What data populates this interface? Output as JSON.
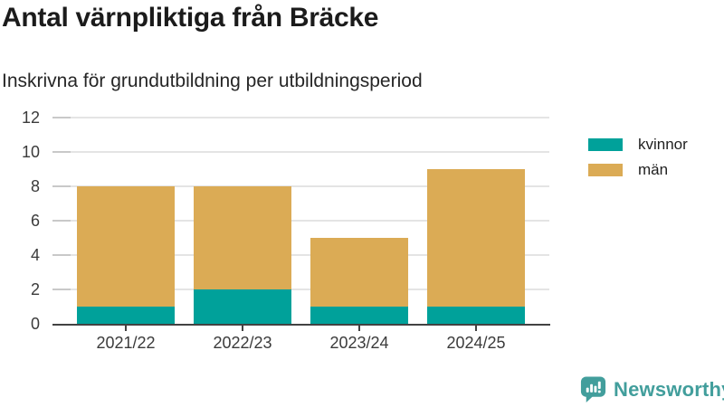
{
  "title": "Antal värnpliktiga från Bräcke",
  "subtitle": "Inskrivna för grundutbildning per utbildningsperiod",
  "chart_data": {
    "type": "bar",
    "stacked": true,
    "categories": [
      "2021/22",
      "2022/23",
      "2023/24",
      "2024/25"
    ],
    "series": [
      {
        "name": "kvinnor",
        "color": "#00A19A",
        "values": [
          1,
          2,
          1,
          1
        ]
      },
      {
        "name": "män",
        "color": "#DBAB55",
        "values": [
          7,
          6,
          4,
          8
        ]
      }
    ],
    "totals": [
      8,
      8,
      5,
      9
    ],
    "xlabel": "",
    "ylabel": "",
    "ylim": [
      0,
      12
    ],
    "yticks": [
      0,
      2,
      4,
      6,
      8,
      10,
      12
    ],
    "grid": true,
    "legend_position": "right",
    "gridline_color": "#e4e4e4",
    "axis_color": "#424242",
    "tick_label_color": "#3b3b3b"
  },
  "branding": {
    "logo_text": "Newsworthy",
    "logo_icon": "speech-bubble-bar-chart-icon",
    "brand_color": "#429E9C"
  }
}
